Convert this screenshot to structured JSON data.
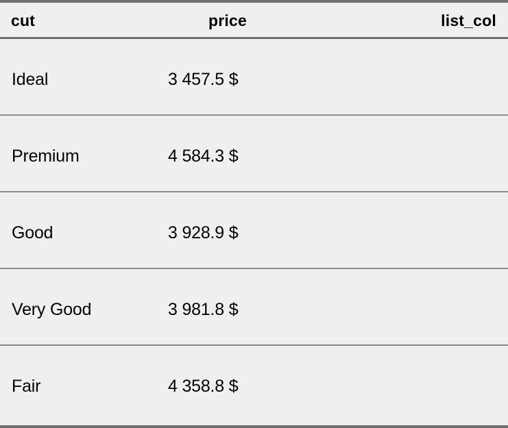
{
  "table": {
    "columns": [
      "cut",
      "price",
      "list_col"
    ],
    "rows": [
      {
        "cut": "Ideal",
        "price": "3 457.5 $",
        "list_col": ""
      },
      {
        "cut": "Premium",
        "price": "4 584.3 $",
        "list_col": ""
      },
      {
        "cut": "Good",
        "price": "3 928.9 $",
        "list_col": ""
      },
      {
        "cut": "Very Good",
        "price": "3 981.8 $",
        "list_col": ""
      },
      {
        "cut": "Fair",
        "price": "4 358.8 $",
        "list_col": ""
      }
    ]
  },
  "colors": {
    "background": "#efefef",
    "rule": "#6e6e6e",
    "row_rule": "#8a8a8a"
  }
}
